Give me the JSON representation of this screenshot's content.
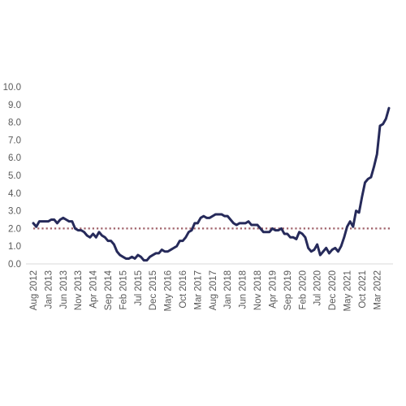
{
  "chart_data": {
    "type": "line",
    "title": "",
    "xlabel": "",
    "ylabel": "",
    "ylim": [
      0,
      10
    ],
    "yticks": [
      "0.0",
      "1.0",
      "2.0",
      "3.0",
      "4.0",
      "5.0",
      "6.0",
      "7.0",
      "8.0",
      "9.0",
      "10.0"
    ],
    "xtick_labels": [
      "Aug 2012",
      "Jan 2013",
      "Jun 2013",
      "Nov 2013",
      "Apr 2014",
      "Sep 2014",
      "Feb 2015",
      "Jul 2015",
      "Dec 2015",
      "May 2016",
      "Oct 2016",
      "Mar 2017",
      "Aug 2017",
      "Jan 2018",
      "Jun 2018",
      "Nov 2018",
      "Apr 2019",
      "Sep 2019",
      "Feb 2020",
      "Jul 2020",
      "Dec 2020",
      "May 2021",
      "Oct 2021",
      "Mar 2022"
    ],
    "grid": false,
    "legend": "none",
    "series": [
      {
        "color": "#262a5a",
        "style": "solid",
        "x_start": "Aug 2012",
        "frequency": "monthly",
        "values": [
          2.3,
          2.1,
          2.4,
          2.4,
          2.4,
          2.4,
          2.5,
          2.5,
          2.3,
          2.5,
          2.6,
          2.5,
          2.4,
          2.4,
          2.0,
          1.9,
          1.9,
          1.8,
          1.6,
          1.5,
          1.7,
          1.5,
          1.8,
          1.6,
          1.5,
          1.3,
          1.3,
          1.1,
          0.7,
          0.5,
          0.4,
          0.3,
          0.3,
          0.4,
          0.3,
          0.5,
          0.4,
          0.2,
          0.2,
          0.4,
          0.5,
          0.6,
          0.6,
          0.8,
          0.7,
          0.7,
          0.8,
          0.9,
          1.0,
          1.3,
          1.3,
          1.5,
          1.8,
          1.9,
          2.3,
          2.3,
          2.6,
          2.7,
          2.6,
          2.6,
          2.7,
          2.8,
          2.8,
          2.8,
          2.7,
          2.7,
          2.5,
          2.3,
          2.2,
          2.3,
          2.3,
          2.3,
          2.4,
          2.2,
          2.2,
          2.2,
          2.0,
          1.8,
          1.8,
          1.8,
          2.0,
          1.9,
          1.9,
          2.0,
          1.7,
          1.7,
          1.5,
          1.5,
          1.4,
          1.8,
          1.7,
          1.5,
          0.9,
          0.7,
          0.8,
          1.1,
          0.5,
          0.7,
          0.9,
          0.6,
          0.8,
          0.9,
          0.7,
          1.0,
          1.5,
          2.1,
          2.4,
          2.1,
          3.0,
          2.9,
          3.8,
          4.6,
          4.8,
          4.9,
          5.5,
          6.2,
          7.8,
          7.9,
          8.2,
          8.8
        ]
      },
      {
        "color": "#a0626a",
        "style": "dotted",
        "values": [
          2.0,
          2.0
        ]
      }
    ]
  }
}
